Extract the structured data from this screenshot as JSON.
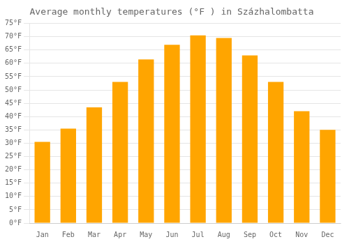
{
  "chart_data": {
    "type": "bar",
    "title": "Average monthly temperatures (°F ) in Százhalombatta",
    "categories": [
      "Jan",
      "Feb",
      "Mar",
      "Apr",
      "May",
      "Jun",
      "Jul",
      "Aug",
      "Sep",
      "Oct",
      "Nov",
      "Dec"
    ],
    "values": [
      30.5,
      35.5,
      43.5,
      53.0,
      61.5,
      67.0,
      70.5,
      69.5,
      63.0,
      53.0,
      42.0,
      35.0
    ],
    "color": "#FFA500",
    "ylim": [
      0,
      75
    ],
    "yticks": [
      {
        "value": 0,
        "label": "0°F"
      },
      {
        "value": 5,
        "label": "5°F"
      },
      {
        "value": 10,
        "label": "10°F"
      },
      {
        "value": 15,
        "label": "15°F"
      },
      {
        "value": 20,
        "label": "20°F"
      },
      {
        "value": 25,
        "label": "25°F"
      },
      {
        "value": 30,
        "label": "30°F"
      },
      {
        "value": 35,
        "label": "35°F"
      },
      {
        "value": 40,
        "label": "40°F"
      },
      {
        "value": 45,
        "label": "45°F"
      },
      {
        "value": 50,
        "label": "50°F"
      },
      {
        "value": 55,
        "label": "55°F"
      },
      {
        "value": 60,
        "label": "60°F"
      },
      {
        "value": 65,
        "label": "65°F"
      },
      {
        "value": 70,
        "label": "70°F"
      },
      {
        "value": 75,
        "label": "75°F"
      }
    ],
    "grid": true
  }
}
